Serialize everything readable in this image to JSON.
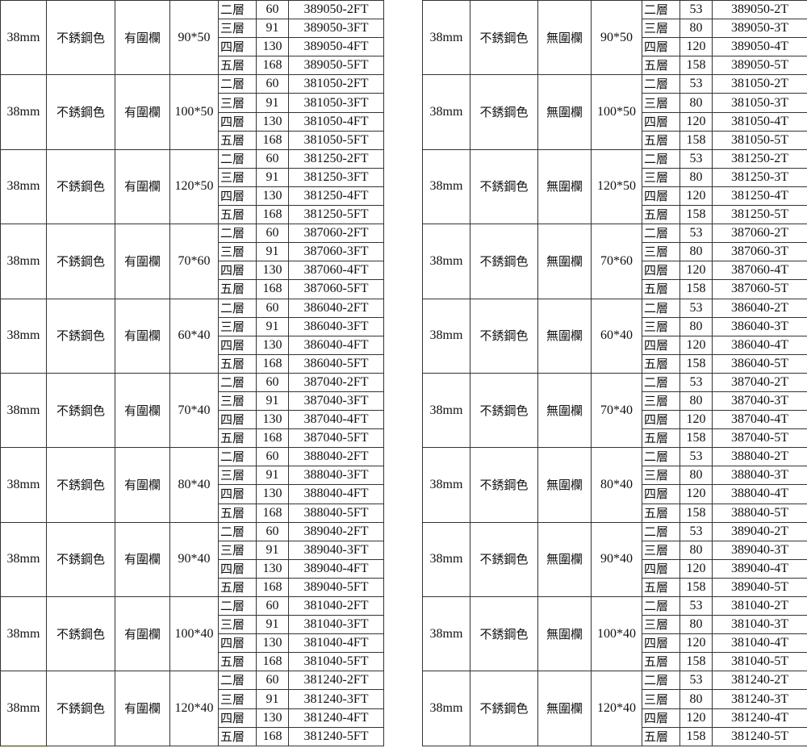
{
  "tables": [
    {
      "groups": [
        {
          "diameter": "38mm",
          "color": "不銹鋼色",
          "rail": "有圍欄",
          "size": "90*50",
          "tiers": [
            {
              "level": "二層",
              "value": "60",
              "code": "389050-2FT"
            },
            {
              "level": "三層",
              "value": "91",
              "code": "389050-3FT"
            },
            {
              "level": "四層",
              "value": "130",
              "code": "389050-4FT"
            },
            {
              "level": "五層",
              "value": "168",
              "code": "389050-5FT"
            }
          ]
        },
        {
          "diameter": "38mm",
          "color": "不銹鋼色",
          "rail": "有圍欄",
          "size": "100*50",
          "tiers": [
            {
              "level": "二層",
              "value": "60",
              "code": "381050-2FT"
            },
            {
              "level": "三層",
              "value": "91",
              "code": "381050-3FT"
            },
            {
              "level": "四層",
              "value": "130",
              "code": "381050-4FT"
            },
            {
              "level": "五層",
              "value": "168",
              "code": "381050-5FT"
            }
          ]
        },
        {
          "diameter": "38mm",
          "color": "不銹鋼色",
          "rail": "有圍欄",
          "size": "120*50",
          "tiers": [
            {
              "level": "二層",
              "value": "60",
              "code": "381250-2FT"
            },
            {
              "level": "三層",
              "value": "91",
              "code": "381250-3FT"
            },
            {
              "level": "四層",
              "value": "130",
              "code": "381250-4FT"
            },
            {
              "level": "五層",
              "value": "168",
              "code": "381250-5FT"
            }
          ]
        },
        {
          "diameter": "38mm",
          "color": "不銹鋼色",
          "rail": "有圍欄",
          "size": "70*60",
          "tiers": [
            {
              "level": "二層",
              "value": "60",
              "code": "387060-2FT"
            },
            {
              "level": "三層",
              "value": "91",
              "code": "387060-3FT"
            },
            {
              "level": "四層",
              "value": "130",
              "code": "387060-4FT"
            },
            {
              "level": "五層",
              "value": "168",
              "code": "387060-5FT"
            }
          ]
        },
        {
          "diameter": "38mm",
          "color": "不銹鋼色",
          "rail": "有圍欄",
          "size": "60*40",
          "tiers": [
            {
              "level": "二層",
              "value": "60",
              "code": "386040-2FT"
            },
            {
              "level": "三層",
              "value": "91",
              "code": "386040-3FT"
            },
            {
              "level": "四層",
              "value": "130",
              "code": "386040-4FT"
            },
            {
              "level": "五層",
              "value": "168",
              "code": "386040-5FT"
            }
          ]
        },
        {
          "diameter": "38mm",
          "color": "不銹鋼色",
          "rail": "有圍欄",
          "size": "70*40",
          "tiers": [
            {
              "level": "二層",
              "value": "60",
              "code": "387040-2FT"
            },
            {
              "level": "三層",
              "value": "91",
              "code": "387040-3FT"
            },
            {
              "level": "四層",
              "value": "130",
              "code": "387040-4FT"
            },
            {
              "level": "五層",
              "value": "168",
              "code": "387040-5FT"
            }
          ]
        },
        {
          "diameter": "38mm",
          "color": "不銹鋼色",
          "rail": "有圍欄",
          "size": "80*40",
          "tiers": [
            {
              "level": "二層",
              "value": "60",
              "code": "388040-2FT"
            },
            {
              "level": "三層",
              "value": "91",
              "code": "388040-3FT"
            },
            {
              "level": "四層",
              "value": "130",
              "code": "388040-4FT"
            },
            {
              "level": "五層",
              "value": "168",
              "code": "388040-5FT"
            }
          ]
        },
        {
          "diameter": "38mm",
          "color": "不銹鋼色",
          "rail": "有圍欄",
          "size": "90*40",
          "tiers": [
            {
              "level": "二層",
              "value": "60",
              "code": "389040-2FT"
            },
            {
              "level": "三層",
              "value": "91",
              "code": "389040-3FT"
            },
            {
              "level": "四層",
              "value": "130",
              "code": "389040-4FT"
            },
            {
              "level": "五層",
              "value": "168",
              "code": "389040-5FT"
            }
          ]
        },
        {
          "diameter": "38mm",
          "color": "不銹鋼色",
          "rail": "有圍欄",
          "size": "100*40",
          "tiers": [
            {
              "level": "二層",
              "value": "60",
              "code": "381040-2FT"
            },
            {
              "level": "三層",
              "value": "91",
              "code": "381040-3FT"
            },
            {
              "level": "四層",
              "value": "130",
              "code": "381040-4FT"
            },
            {
              "level": "五層",
              "value": "168",
              "code": "381040-5FT"
            }
          ]
        },
        {
          "diameter": "38mm",
          "color": "不銹鋼色",
          "rail": "有圍欄",
          "size": "120*40",
          "tiers": [
            {
              "level": "二層",
              "value": "60",
              "code": "381240-2FT"
            },
            {
              "level": "三層",
              "value": "91",
              "code": "381240-3FT"
            },
            {
              "level": "四層",
              "value": "130",
              "code": "381240-4FT"
            },
            {
              "level": "五層",
              "value": "168",
              "code": "381240-5FT"
            }
          ]
        }
      ]
    },
    {
      "groups": [
        {
          "diameter": "38mm",
          "color": "不銹鋼色",
          "rail": "無圍欄",
          "size": "90*50",
          "tiers": [
            {
              "level": "二層",
              "value": "53",
              "code": "389050-2T"
            },
            {
              "level": "三層",
              "value": "80",
              "code": "389050-3T"
            },
            {
              "level": "四層",
              "value": "120",
              "code": "389050-4T"
            },
            {
              "level": "五層",
              "value": "158",
              "code": "389050-5T"
            }
          ]
        },
        {
          "diameter": "38mm",
          "color": "不銹鋼色",
          "rail": "無圍欄",
          "size": "100*50",
          "tiers": [
            {
              "level": "二層",
              "value": "53",
              "code": "381050-2T"
            },
            {
              "level": "三層",
              "value": "80",
              "code": "381050-3T"
            },
            {
              "level": "四層",
              "value": "120",
              "code": "381050-4T"
            },
            {
              "level": "五層",
              "value": "158",
              "code": "381050-5T"
            }
          ]
        },
        {
          "diameter": "38mm",
          "color": "不銹鋼色",
          "rail": "無圍欄",
          "size": "120*50",
          "tiers": [
            {
              "level": "二層",
              "value": "53",
              "code": "381250-2T"
            },
            {
              "level": "三層",
              "value": "80",
              "code": "381250-3T"
            },
            {
              "level": "四層",
              "value": "120",
              "code": "381250-4T"
            },
            {
              "level": "五層",
              "value": "158",
              "code": "381250-5T"
            }
          ]
        },
        {
          "diameter": "38mm",
          "color": "不銹鋼色",
          "rail": "無圍欄",
          "size": "70*60",
          "tiers": [
            {
              "level": "二層",
              "value": "53",
              "code": "387060-2T"
            },
            {
              "level": "三層",
              "value": "80",
              "code": "387060-3T"
            },
            {
              "level": "四層",
              "value": "120",
              "code": "387060-4T"
            },
            {
              "level": "五層",
              "value": "158",
              "code": "387060-5T"
            }
          ]
        },
        {
          "diameter": "38mm",
          "color": "不銹鋼色",
          "rail": "無圍欄",
          "size": "60*40",
          "tiers": [
            {
              "level": "二層",
              "value": "53",
              "code": "386040-2T"
            },
            {
              "level": "三層",
              "value": "80",
              "code": "386040-3T"
            },
            {
              "level": "四層",
              "value": "120",
              "code": "386040-4T"
            },
            {
              "level": "五層",
              "value": "158",
              "code": "386040-5T"
            }
          ]
        },
        {
          "diameter": "38mm",
          "color": "不銹鋼色",
          "rail": "無圍欄",
          "size": "70*40",
          "tiers": [
            {
              "level": "二層",
              "value": "53",
              "code": "387040-2T"
            },
            {
              "level": "三層",
              "value": "80",
              "code": "387040-3T"
            },
            {
              "level": "四層",
              "value": "120",
              "code": "387040-4T"
            },
            {
              "level": "五層",
              "value": "158",
              "code": "387040-5T"
            }
          ]
        },
        {
          "diameter": "38mm",
          "color": "不銹鋼色",
          "rail": "無圍欄",
          "size": "80*40",
          "tiers": [
            {
              "level": "二層",
              "value": "53",
              "code": "388040-2T"
            },
            {
              "level": "三層",
              "value": "80",
              "code": "388040-3T"
            },
            {
              "level": "四層",
              "value": "120",
              "code": "388040-4T"
            },
            {
              "level": "五層",
              "value": "158",
              "code": "388040-5T"
            }
          ]
        },
        {
          "diameter": "38mm",
          "color": "不銹鋼色",
          "rail": "無圍欄",
          "size": "90*40",
          "tiers": [
            {
              "level": "二層",
              "value": "53",
              "code": "389040-2T"
            },
            {
              "level": "三層",
              "value": "80",
              "code": "389040-3T"
            },
            {
              "level": "四層",
              "value": "120",
              "code": "389040-4T"
            },
            {
              "level": "五層",
              "value": "158",
              "code": "389040-5T"
            }
          ]
        },
        {
          "diameter": "38mm",
          "color": "不銹鋼色",
          "rail": "無圍欄",
          "size": "100*40",
          "tiers": [
            {
              "level": "二層",
              "value": "53",
              "code": "381040-2T"
            },
            {
              "level": "三層",
              "value": "80",
              "code": "381040-3T"
            },
            {
              "level": "四層",
              "value": "120",
              "code": "381040-4T"
            },
            {
              "level": "五層",
              "value": "158",
              "code": "381040-5T"
            }
          ]
        },
        {
          "diameter": "38mm",
          "color": "不銹鋼色",
          "rail": "無圍欄",
          "size": "120*40",
          "tiers": [
            {
              "level": "二層",
              "value": "53",
              "code": "381240-2T"
            },
            {
              "level": "三層",
              "value": "80",
              "code": "381240-3T"
            },
            {
              "level": "四層",
              "value": "120",
              "code": "381240-4T"
            },
            {
              "level": "五層",
              "value": "158",
              "code": "381240-5T"
            }
          ]
        }
      ]
    }
  ]
}
